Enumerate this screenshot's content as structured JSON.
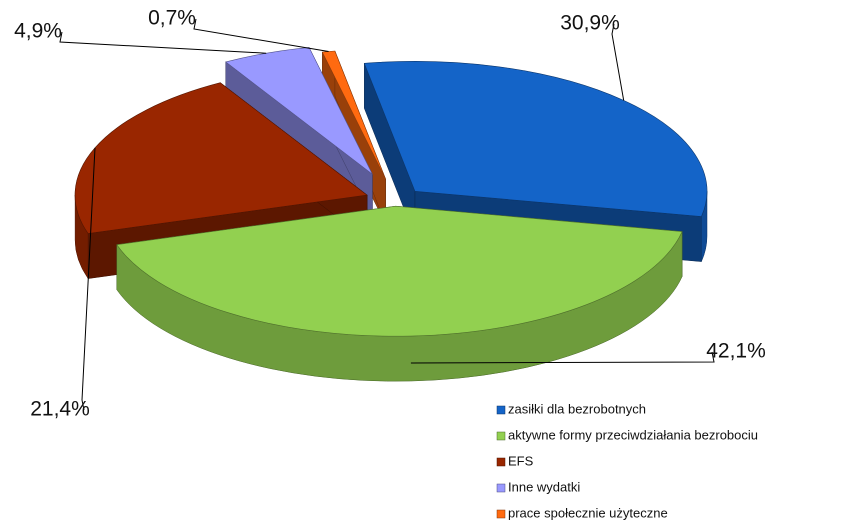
{
  "chart_data": {
    "type": "pie",
    "categories": [
      "zasiłki dla bezrobotnych",
      "aktywne formy przeciwdziałania bezrobociu",
      "EFS",
      "Inne wydatki",
      "prace społecznie użyteczne"
    ],
    "values": [
      30.9,
      42.1,
      21.4,
      4.9,
      0.7
    ],
    "value_labels": [
      "30,9%",
      "42,1%",
      "21,4%",
      "4,9%",
      "0,7%"
    ],
    "colors": [
      "#1464c8",
      "#92d050",
      "#992600",
      "#9999ff",
      "#ff6a10"
    ],
    "legend": "bottom-right"
  }
}
